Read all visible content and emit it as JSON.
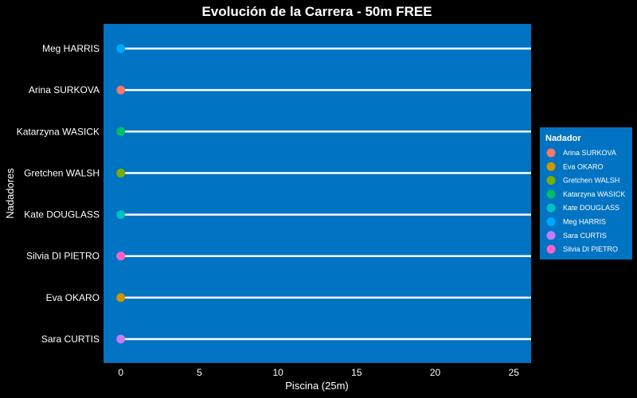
{
  "chart_data": {
    "type": "scatter",
    "title": "Evolución de la Carrera - 50m FREE",
    "xlabel": "Piscina (25m)",
    "ylabel": "Nadadores",
    "xlim": [
      -1.1,
      26.1
    ],
    "xticks": [
      0,
      5,
      10,
      15,
      20,
      25
    ],
    "categories": [
      "Meg HARRIS",
      "Arina SURKOVA",
      "Katarzyna WASICK",
      "Gretchen WALSH",
      "Kate DOUGLASS",
      "Silvia DI PIETRO",
      "Eva OKARO",
      "Sara CURTIS"
    ],
    "points": [
      {
        "swimmer": "Meg HARRIS",
        "x": 0,
        "color": "#00A9FF"
      },
      {
        "swimmer": "Arina SURKOVA",
        "x": 0,
        "color": "#F8766D"
      },
      {
        "swimmer": "Katarzyna WASICK",
        "x": 0,
        "color": "#00BE67"
      },
      {
        "swimmer": "Gretchen WALSH",
        "x": 0,
        "color": "#7CAE00"
      },
      {
        "swimmer": "Kate DOUGLASS",
        "x": 0,
        "color": "#00BFC4"
      },
      {
        "swimmer": "Silvia DI PIETRO",
        "x": 0,
        "color": "#FF61CC"
      },
      {
        "swimmer": "Eva OKARO",
        "x": 0,
        "color": "#CD9600"
      },
      {
        "swimmer": "Sara CURTIS",
        "x": 0,
        "color": "#C77CFF"
      }
    ],
    "legend": {
      "title": "Nadador",
      "position": "right",
      "entries": [
        {
          "label": "Arina SURKOVA",
          "color": "#F8766D"
        },
        {
          "label": "Eva OKARO",
          "color": "#CD9600"
        },
        {
          "label": "Gretchen WALSH",
          "color": "#7CAE00"
        },
        {
          "label": "Katarzyna WASICK",
          "color": "#00BE67"
        },
        {
          "label": "Kate DOUGLASS",
          "color": "#00BFC4"
        },
        {
          "label": "Meg HARRIS",
          "color": "#00A9FF"
        },
        {
          "label": "Sara CURTIS",
          "color": "#C77CFF"
        },
        {
          "label": "Silvia DI PIETRO",
          "color": "#FF61CC"
        }
      ]
    },
    "colors": {
      "panel": "#0073C2",
      "background": "#000000",
      "lane_lines": "#FFFFFF"
    }
  }
}
